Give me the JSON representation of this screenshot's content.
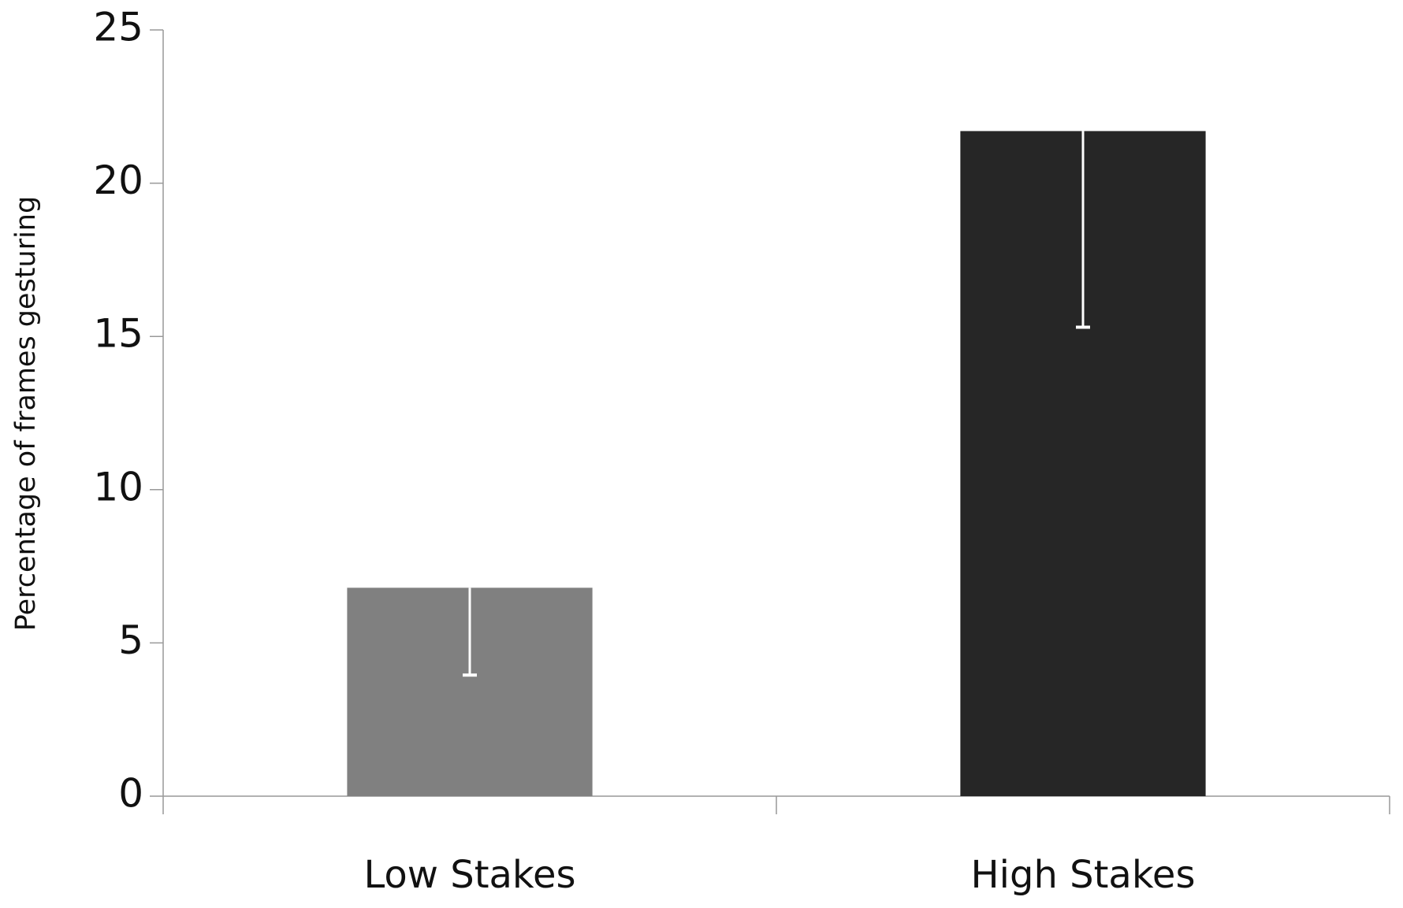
{
  "chart_data": {
    "type": "bar",
    "y_label": "Percentage of frames gesturing",
    "categories": [
      "Low Stakes",
      "High Stakes"
    ],
    "values": [
      6.8,
      21.7
    ],
    "errors": [
      2.85,
      6.4
    ],
    "colors": [
      "#808080",
      "#262626"
    ],
    "error_color": "#ffffff",
    "ylim": [
      0,
      25
    ],
    "yticks": [
      0,
      5,
      10,
      15,
      20,
      25
    ],
    "grid": false
  }
}
